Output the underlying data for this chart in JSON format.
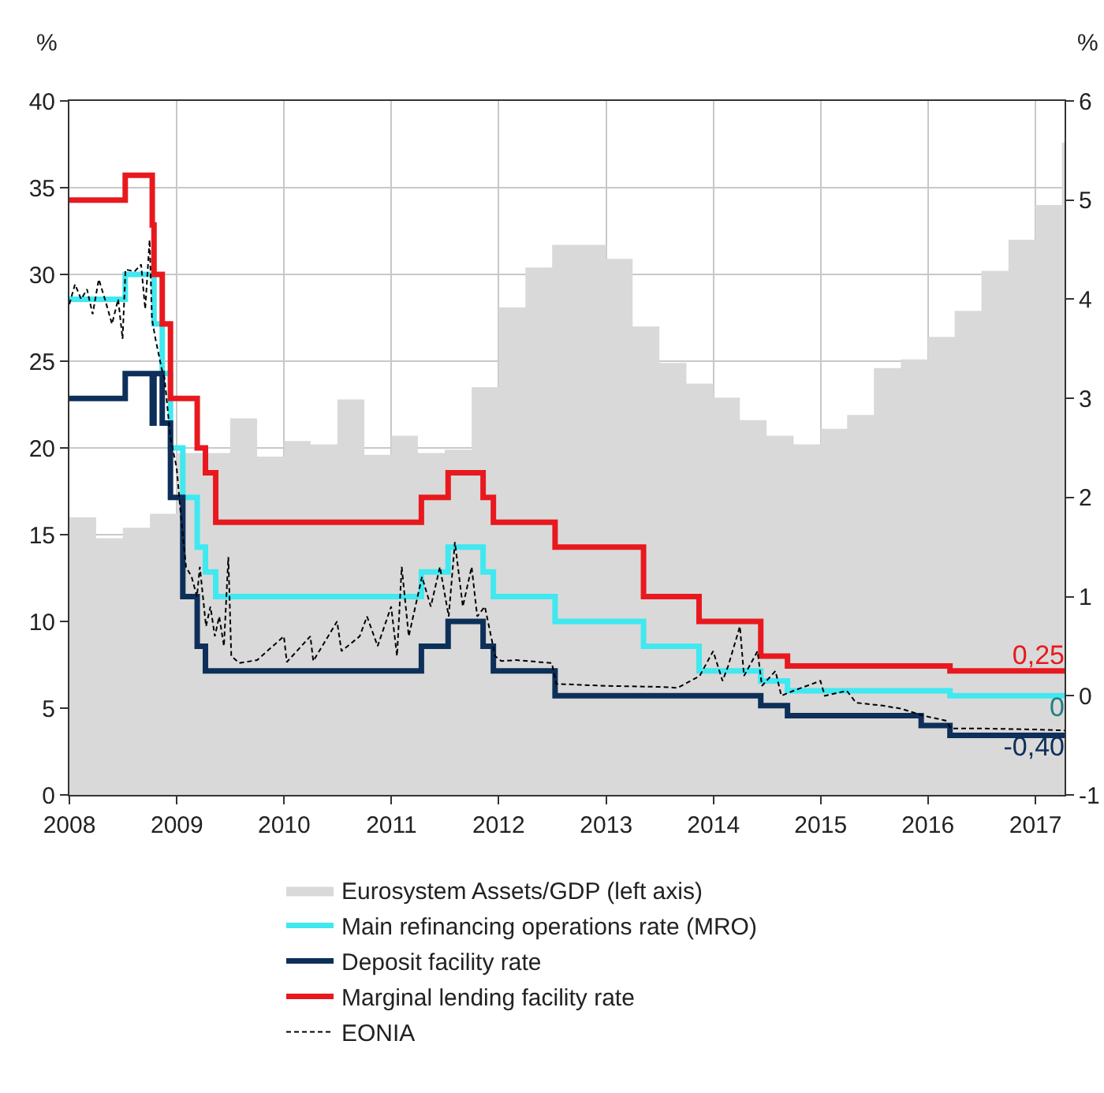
{
  "chart_data": {
    "type": "area",
    "ylabel": "%",
    "y2label": "%",
    "xlim": [
      "2008-01-01",
      "2017-04-10"
    ],
    "xticks": [
      "2008",
      "2009",
      "2010",
      "2011",
      "2012",
      "2013",
      "2014",
      "2015",
      "2016",
      "2017"
    ],
    "ylim": [
      0,
      40
    ],
    "yticks": [
      0,
      5,
      10,
      15,
      20,
      25,
      30,
      35,
      40
    ],
    "y2lim": [
      -1,
      6
    ],
    "y2ticks": [
      -1,
      0,
      1,
      2,
      3,
      4,
      5,
      6
    ],
    "grid": true,
    "legend": "bottom",
    "series": [
      {
        "name": "Eurosystem Assets/GDP (left axis)",
        "type": "area",
        "color": "#d9d9d9",
        "x": [
          "2008-01",
          "2008-04",
          "2008-07",
          "2008-10",
          "2009-01",
          "2009-04",
          "2009-07",
          "2009-10",
          "2010-01",
          "2010-04",
          "2010-07",
          "2010-10",
          "2011-01",
          "2011-04",
          "2011-07",
          "2011-10",
          "2012-01",
          "2012-04",
          "2012-07",
          "2012-10",
          "2013-01",
          "2013-04",
          "2013-07",
          "2013-10",
          "2014-01",
          "2014-04",
          "2014-07",
          "2014-10",
          "2015-01",
          "2015-04",
          "2015-07",
          "2015-10",
          "2016-01",
          "2016-04",
          "2016-07",
          "2016-10",
          "2017-01",
          "2017-04",
          "2017-04-10"
        ],
        "values": [
          16,
          14.8,
          15.4,
          16.2,
          19.7,
          19.7,
          21.7,
          19.5,
          20.4,
          20.2,
          22.8,
          19.6,
          20.7,
          19.7,
          19.9,
          23.5,
          28.1,
          30.4,
          31.7,
          31.7,
          30.9,
          27,
          24.9,
          23.7,
          22.9,
          21.6,
          20.7,
          20.2,
          21.1,
          21.9,
          24.6,
          25.1,
          26.4,
          27.9,
          30.2,
          32,
          34,
          37.6,
          37.6
        ]
      },
      {
        "name": "Main refinancing operations rate (MRO)",
        "type": "step",
        "axis": "y2",
        "color": "#40e8f0",
        "x": [
          "2008-01-01",
          "2008-07-09",
          "2008-10-15",
          "2008-11-12",
          "2008-12-10",
          "2009-01-21",
          "2009-03-11",
          "2009-04-08",
          "2009-05-13",
          "2011-04-13",
          "2011-07-13",
          "2011-11-09",
          "2011-12-14",
          "2012-07-11",
          "2013-05-08",
          "2013-11-13",
          "2014-06-11",
          "2014-09-10",
          "2016-03-16",
          "2017-04-10"
        ],
        "values": [
          4,
          4.25,
          3.75,
          3.25,
          2.5,
          2,
          1.5,
          1.25,
          1,
          1.25,
          1.5,
          1.25,
          1,
          0.75,
          0.5,
          0.25,
          0.15,
          0.05,
          0,
          0
        ],
        "value_labels": [
          null,
          null,
          null,
          null,
          null,
          null,
          null,
          null,
          null,
          null,
          null,
          null,
          null,
          null,
          null,
          null,
          null,
          null,
          null,
          "0"
        ]
      },
      {
        "name": "Deposit facility rate",
        "type": "step",
        "axis": "y2",
        "color": "#0d2f5a",
        "x": [
          "2008-01-01",
          "2008-07-09",
          "2008-10-09",
          "2008-10-15",
          "2008-11-12",
          "2008-12-10",
          "2009-01-21",
          "2009-03-11",
          "2009-04-08",
          "2011-04-13",
          "2011-07-13",
          "2011-11-09",
          "2011-12-14",
          "2012-07-11",
          "2014-06-11",
          "2014-09-10",
          "2015-12-09",
          "2016-03-16",
          "2017-04-10"
        ],
        "values": [
          3,
          3.25,
          2.75,
          3.25,
          2.75,
          2,
          1,
          0.5,
          0.25,
          0.5,
          0.75,
          0.5,
          0.25,
          0,
          -0.1,
          -0.2,
          -0.3,
          -0.4,
          -0.4
        ],
        "value_labels": [
          null,
          null,
          null,
          null,
          null,
          null,
          null,
          null,
          null,
          null,
          null,
          null,
          null,
          null,
          null,
          null,
          null,
          null,
          "-0,40"
        ]
      },
      {
        "name": "Marginal lending facility rate",
        "type": "step",
        "axis": "y2",
        "color": "#e8191e",
        "x": [
          "2008-01-01",
          "2008-07-09",
          "2008-10-09",
          "2008-10-15",
          "2008-11-12",
          "2008-12-10",
          "2009-03-11",
          "2009-04-08",
          "2009-05-13",
          "2011-04-13",
          "2011-07-13",
          "2011-11-09",
          "2011-12-14",
          "2012-07-11",
          "2013-05-08",
          "2013-11-13",
          "2014-06-11",
          "2014-09-10",
          "2016-03-16",
          "2017-04-10"
        ],
        "values": [
          5,
          5.25,
          4.75,
          4.25,
          3.75,
          3,
          2.5,
          2.25,
          1.75,
          2,
          2.25,
          2,
          1.75,
          1.5,
          1,
          0.75,
          0.4,
          0.3,
          0.25,
          0.25
        ],
        "value_labels": [
          null,
          null,
          null,
          null,
          null,
          null,
          null,
          null,
          null,
          null,
          null,
          null,
          null,
          null,
          null,
          null,
          null,
          null,
          null,
          "0,25"
        ]
      },
      {
        "name": "EONIA",
        "type": "line",
        "axis": "y2",
        "color": "#000000",
        "line_style": "dashed",
        "x": [
          "2008-01-01",
          "2008-01-20",
          "2008-02-10",
          "2008-03-01",
          "2008-03-20",
          "2008-04-10",
          "2008-05-01",
          "2008-05-25",
          "2008-06-15",
          "2008-06-30",
          "2008-07-10",
          "2008-08-10",
          "2008-09-01",
          "2008-09-15",
          "2008-09-30",
          "2008-10-08",
          "2008-10-20",
          "2008-11-10",
          "2008-11-20",
          "2008-12-10",
          "2008-12-31",
          "2009-01-15",
          "2009-02-01",
          "2009-02-20",
          "2009-03-10",
          "2009-03-20",
          "2009-04-10",
          "2009-04-25",
          "2009-05-10",
          "2009-05-25",
          "2009-06-10",
          "2009-06-25",
          "2009-07-05",
          "2009-08-01",
          "2009-10-01",
          "2009-12-31",
          "2010-01-10",
          "2010-03-31",
          "2010-04-10",
          "2010-06-30",
          "2010-07-15",
          "2010-09-15",
          "2010-10-10",
          "2010-11-15",
          "2010-12-31",
          "2011-01-20",
          "2011-02-05",
          "2011-03-01",
          "2011-04-15",
          "2011-05-15",
          "2011-06-15",
          "2011-07-15",
          "2011-08-05",
          "2011-09-01",
          "2011-10-01",
          "2011-10-20",
          "2011-11-15",
          "2011-12-20",
          "2012-01-10",
          "2012-03-01",
          "2012-06-30",
          "2012-07-15",
          "2012-12-31",
          "2013-06-30",
          "2013-09-01",
          "2013-11-15",
          "2013-12-31",
          "2014-02-01",
          "2014-02-20",
          "2014-04-01",
          "2014-04-15",
          "2014-05-31",
          "2014-06-15",
          "2014-07-31",
          "2014-08-20",
          "2014-09-30",
          "2014-12-31",
          "2015-01-15",
          "2015-03-31",
          "2015-05-01",
          "2015-08-01",
          "2015-10-01",
          "2015-12-15",
          "2016-03-01",
          "2016-03-20",
          "2016-07-01",
          "2016-12-31",
          "2017-04-10"
        ],
        "values": [
          3.95,
          4.15,
          4,
          4.1,
          3.85,
          4.2,
          4,
          3.75,
          4,
          3.6,
          4.3,
          4.28,
          4.35,
          3.9,
          4.6,
          3.8,
          3.6,
          3.3,
          3.2,
          2.6,
          2.3,
          1.8,
          1.3,
          1.2,
          1,
          1.3,
          0.7,
          0.9,
          0.6,
          0.8,
          0.5,
          1.4,
          0.4,
          0.33,
          0.36,
          0.6,
          0.34,
          0.6,
          0.35,
          0.75,
          0.45,
          0.6,
          0.8,
          0.5,
          0.9,
          0.4,
          1.3,
          0.6,
          1.2,
          0.9,
          1.3,
          0.8,
          1.55,
          0.9,
          1.3,
          0.8,
          0.9,
          0.4,
          0.35,
          0.36,
          0.33,
          0.12,
          0.1,
          0.09,
          0.08,
          0.2,
          0.45,
          0.15,
          0.3,
          0.7,
          0.2,
          0.45,
          0.1,
          0.25,
          0,
          0.05,
          0.15,
          0,
          0.05,
          -0.07,
          -0.1,
          -0.13,
          -0.2,
          -0.25,
          -0.33,
          -0.33,
          -0.34,
          -0.35
        ]
      }
    ]
  }
}
